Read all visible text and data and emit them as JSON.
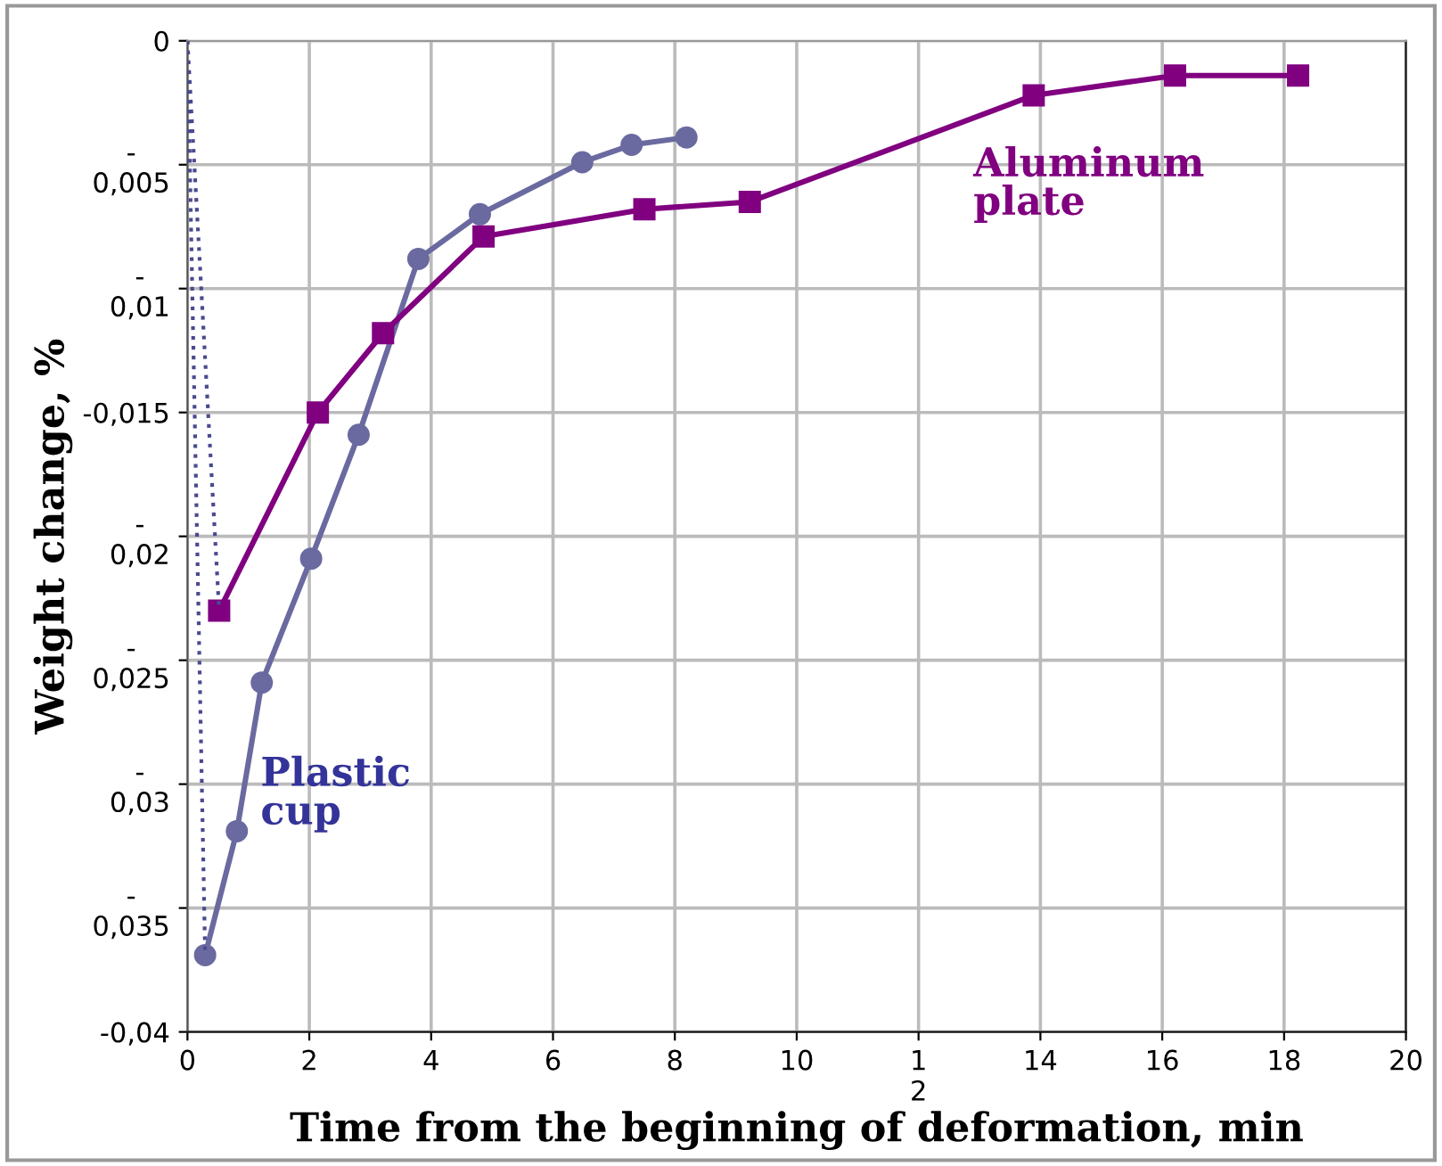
{
  "chart_data": {
    "type": "line",
    "xlabel": "Time from the beginning of deformation, min",
    "ylabel": "Weight change, %",
    "xlim": [
      0,
      20
    ],
    "xticks": [
      0,
      2,
      4,
      6,
      8,
      10,
      {
        "value": 12,
        "label": "1\n2"
      },
      14,
      16,
      18,
      20
    ],
    "ylim": [
      -0.04,
      0
    ],
    "yticks": [
      {
        "value": -0.04,
        "label": "-0,04"
      },
      {
        "value": -0.035,
        "label": "-\n0,035"
      },
      {
        "value": -0.03,
        "label": "-\n0,03"
      },
      {
        "value": -0.025,
        "label": "-\n0,025"
      },
      {
        "value": -0.02,
        "label": "-\n0,02"
      },
      {
        "value": -0.015,
        "label": "-0,015"
      },
      {
        "value": -0.01,
        "label": "-\n0,01"
      },
      {
        "value": -0.005,
        "label": "-\n0,005"
      },
      0
    ],
    "grid": true,
    "series": [
      {
        "color": "#6a6aa0",
        "marker": "circle",
        "line_style": "solid",
        "x": [
          0.29,
          0.81,
          1.22,
          2.03,
          2.81,
          3.79,
          4.8,
          6.48,
          7.29,
          8.19
        ],
        "values": [
          -0.0369,
          -0.0319,
          -0.0259,
          -0.0209,
          -0.0159,
          -0.0088,
          -0.007,
          -0.0049,
          -0.0042,
          -0.0039
        ]
      },
      {
        "color": "#800080",
        "marker": "square",
        "line_style": "solid",
        "x": [
          0.52,
          2.14,
          3.21,
          4.86,
          7.5,
          9.23,
          13.89,
          16.21,
          18.23
        ],
        "values": [
          -0.023,
          -0.015,
          -0.0118,
          -0.0079,
          -0.0068,
          -0.0065,
          -0.0022,
          -0.0014,
          -0.0014
        ]
      },
      {
        "color": "#4a4a90",
        "marker": "none",
        "line_style": "dotted",
        "x": [
          0,
          0.29
        ],
        "values": [
          0,
          -0.0369
        ]
      },
      {
        "color": "#4a4a90",
        "marker": "none",
        "line_style": "dotted",
        "x": [
          0,
          0.52
        ],
        "values": [
          0,
          -0.023
        ]
      }
    ],
    "annotations": [
      "Plastic\ncup",
      "Aluminum\nplate"
    ]
  }
}
